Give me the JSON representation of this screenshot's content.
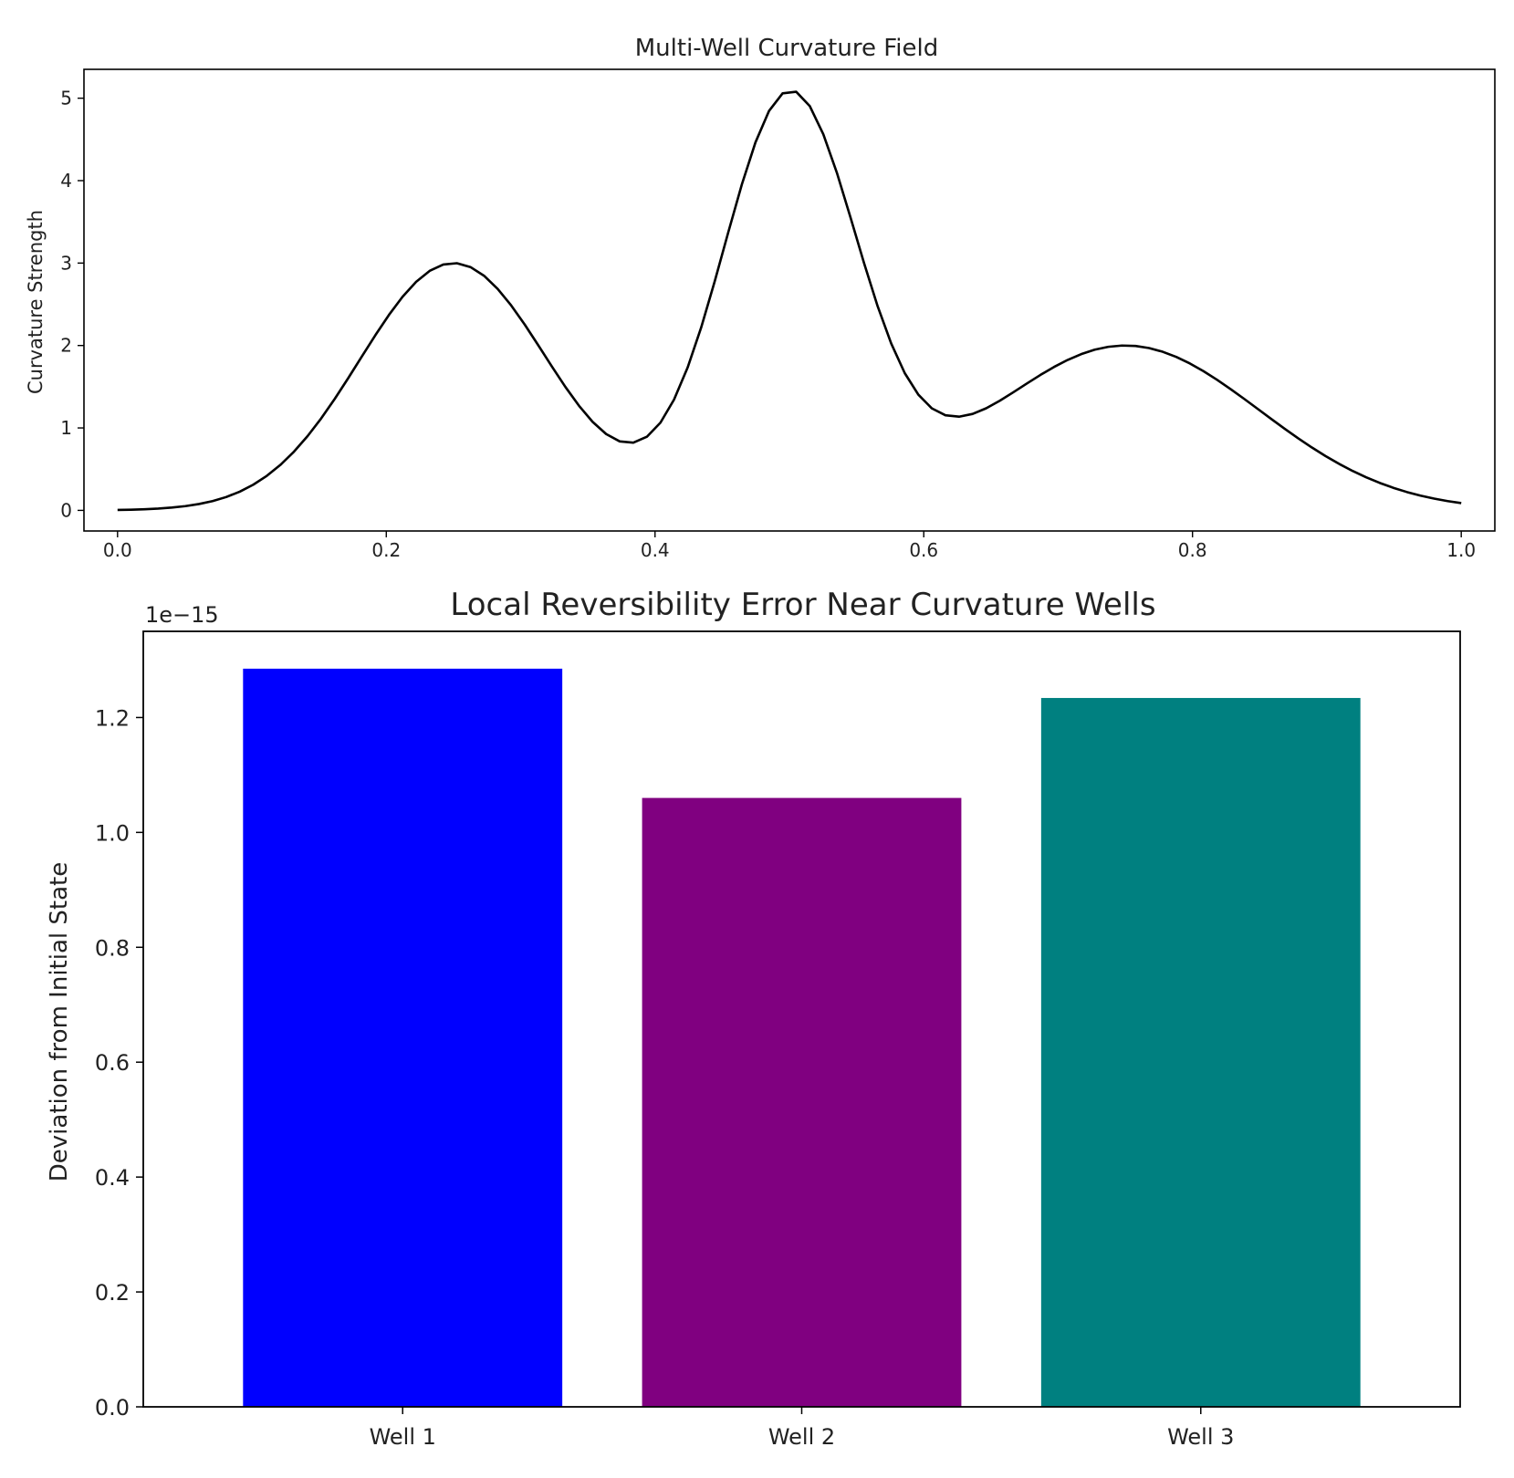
{
  "chart_data": [
    {
      "type": "line",
      "title": "Multi-Well Curvature Field",
      "xlabel": "",
      "ylabel": "Curvature Strength",
      "xlim": [
        -0.025,
        1.025
      ],
      "ylim": [
        -0.25,
        5.35
      ],
      "xticks": [
        0.0,
        0.2,
        0.4,
        0.6,
        0.8,
        1.0
      ],
      "xtick_labels": [
        "0.0",
        "0.2",
        "0.4",
        "0.6",
        "0.8",
        "1.0"
      ],
      "yticks": [
        0,
        1,
        2,
        3,
        4,
        5
      ],
      "ytick_labels": [
        "0",
        "1",
        "2",
        "3",
        "4",
        "5"
      ],
      "grid": false,
      "series": [
        {
          "name": "curvature",
          "color": "#000000",
          "wells": [
            {
              "center": 0.25,
              "amplitude": 3.0,
              "width": 0.07
            },
            {
              "center": 0.5,
              "amplitude": 5.0,
              "width": 0.05
            },
            {
              "center": 0.75,
              "amplitude": 2.0,
              "width": 0.1
            }
          ],
          "x_start": 0.0,
          "x_end": 1.0,
          "samples": 100
        }
      ]
    },
    {
      "type": "bar",
      "title": "Local Reversibility Error Near Curvature Wells",
      "xlabel": "",
      "ylabel": "Deviation from Initial State",
      "offset_label": "1e−15",
      "categories": [
        "Well 1",
        "Well 2",
        "Well 3"
      ],
      "values": [
        1.285,
        1.06,
        1.234
      ],
      "colors": [
        "#0000ff",
        "#800080",
        "#008080"
      ],
      "ylim": [
        0,
        1.35
      ],
      "yticks": [
        0.0,
        0.2,
        0.4,
        0.6,
        0.8,
        1.0,
        1.2
      ],
      "ytick_labels": [
        "0.0",
        "0.2",
        "0.4",
        "0.6",
        "0.8",
        "1.0",
        "1.2"
      ],
      "grid": false
    }
  ]
}
